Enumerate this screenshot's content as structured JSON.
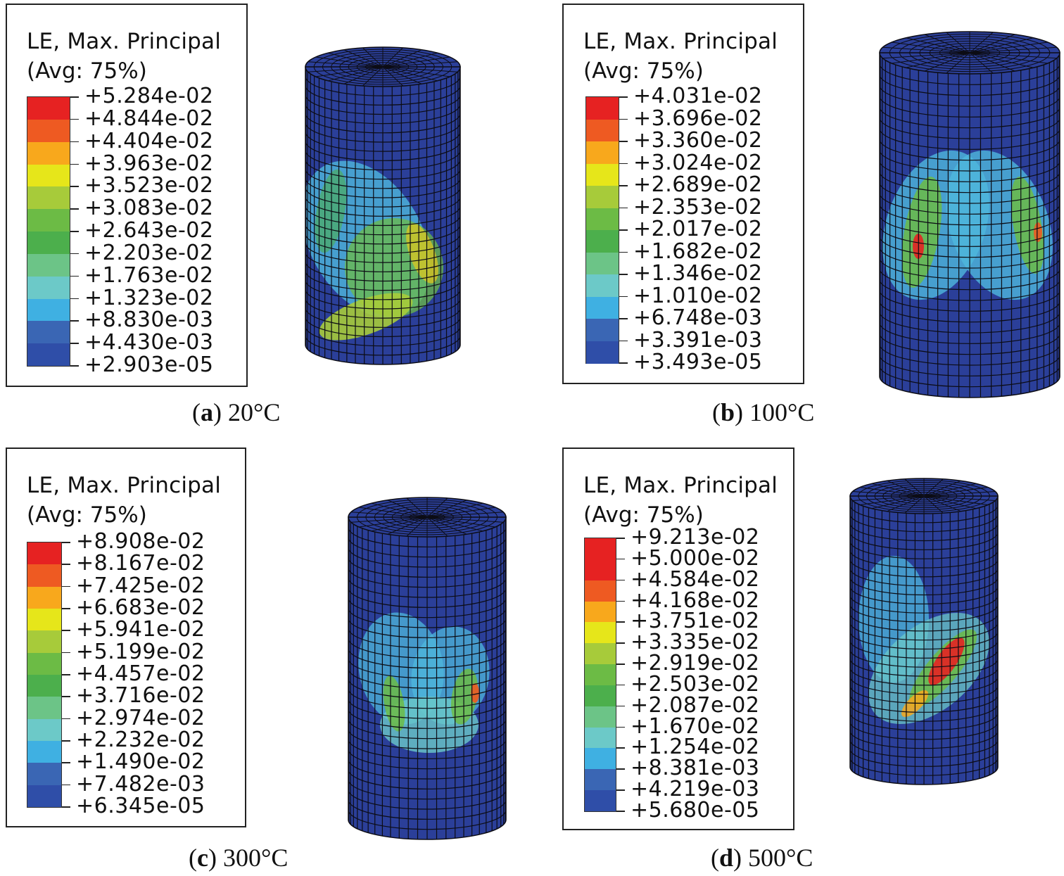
{
  "colors": {
    "mesh_base": "#2b3f99",
    "mesh_line": "#0c0c14",
    "scale": [
      "#e62222",
      "#ee5a22",
      "#f8a81c",
      "#e6e61a",
      "#a7cb3a",
      "#6cbb45",
      "#4caf4c",
      "#6cc487",
      "#6cc9c8",
      "#3fb0e2",
      "#3a66b4",
      "#2f4ea8"
    ]
  },
  "panels": [
    {
      "id": "a",
      "legend": {
        "title": "LE, Max. Principal",
        "avg": "(Avg: 75%)",
        "values": [
          "+5.284e-02",
          "+4.844e-02",
          "+4.404e-02",
          "+3.963e-02",
          "+3.523e-02",
          "+3.083e-02",
          "+2.643e-02",
          "+2.203e-02",
          "+1.763e-02",
          "+1.323e-02",
          "+8.830e-03",
          "+4.430e-03",
          "+2.903e-05"
        ]
      },
      "caption": {
        "letter": "a",
        "temp": "20°C"
      }
    },
    {
      "id": "b",
      "legend": {
        "title": "LE, Max. Principal",
        "avg": "(Avg: 75%)",
        "values": [
          "+4.031e-02",
          "+3.696e-02",
          "+3.360e-02",
          "+3.024e-02",
          "+2.689e-02",
          "+2.353e-02",
          "+2.017e-02",
          "+1.682e-02",
          "+1.346e-02",
          "+1.010e-02",
          "+6.748e-03",
          "+3.391e-03",
          "+3.493e-05"
        ]
      },
      "caption": {
        "letter": "b",
        "temp": "100°C"
      }
    },
    {
      "id": "c",
      "legend": {
        "title": "LE, Max. Principal",
        "avg": "(Avg: 75%)",
        "values": [
          "+8.908e-02",
          "+8.167e-02",
          "+7.425e-02",
          "+6.683e-02",
          "+5.941e-02",
          "+5.199e-02",
          "+4.457e-02",
          "+3.716e-02",
          "+2.974e-02",
          "+2.232e-02",
          "+1.490e-02",
          "+7.482e-03",
          "+6.345e-05"
        ]
      },
      "caption": {
        "letter": "c",
        "temp": "300°C"
      }
    },
    {
      "id": "d",
      "legend": {
        "title": "LE, Max. Principal",
        "avg": "(Avg: 75%)",
        "values": [
          "+9.213e-02",
          "+5.000e-02",
          "+4.584e-02",
          "+4.168e-02",
          "+3.751e-02",
          "+3.335e-02",
          "+2.919e-02",
          "+2.503e-02",
          "+2.087e-02",
          "+1.670e-02",
          "+1.254e-02",
          "+8.381e-03",
          "+4.219e-03",
          "+5.680e-05"
        ]
      },
      "caption": {
        "letter": "d",
        "temp": "500°C"
      }
    }
  ]
}
